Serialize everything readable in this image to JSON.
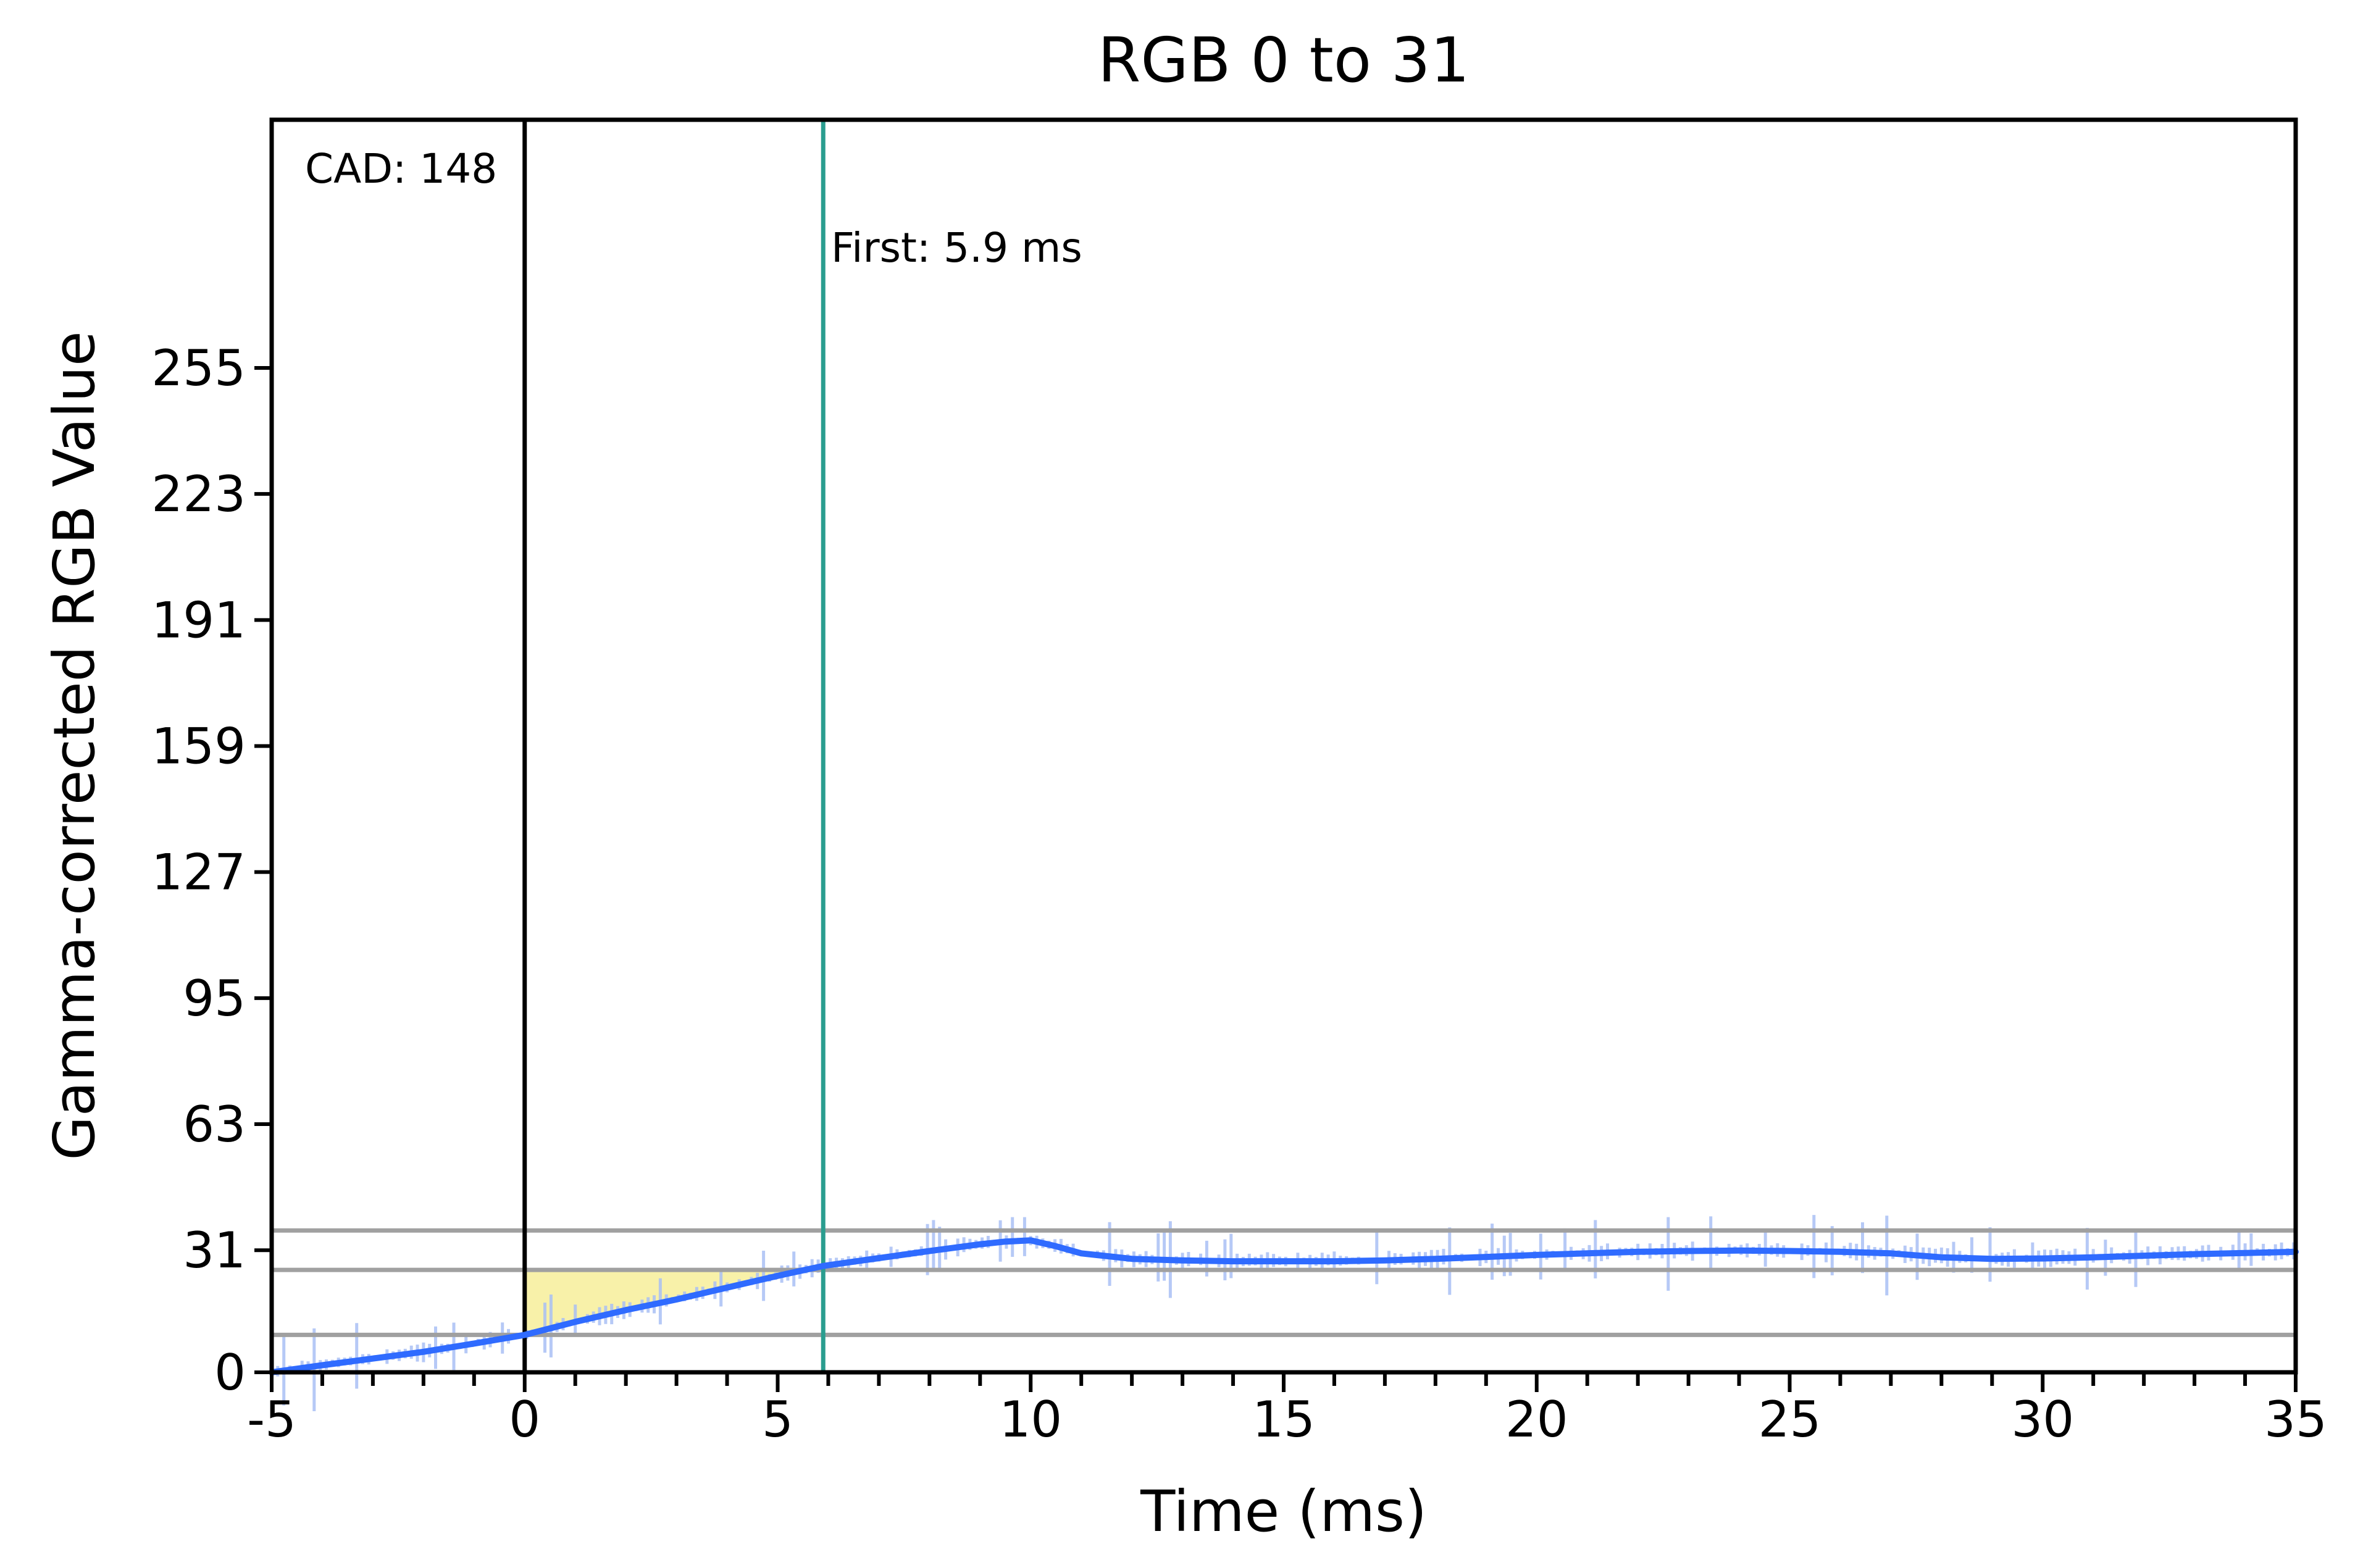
{
  "chart_data": {
    "type": "line",
    "title": "RGB 0 to 31",
    "xlabel": "Time (ms)",
    "ylabel": "Gamma-corrected RGB Value",
    "xlim": [
      -5,
      35
    ],
    "ylim": [
      0,
      318
    ],
    "x_ticks": [
      -5,
      0,
      5,
      10,
      15,
      20,
      25,
      30,
      35
    ],
    "y_ticks": [
      0,
      31,
      63,
      95,
      127,
      159,
      191,
      223,
      255
    ],
    "grid": false,
    "reference_lines": {
      "horizontal": [
        9.5,
        26,
        36
      ],
      "vertical": [
        {
          "x": 0,
          "color": "#000000",
          "label": "CAD: 148"
        },
        {
          "x": 5.9,
          "color": "#2a9d8f",
          "label": "First: 5.9 ms"
        }
      ]
    },
    "shaded_region": {
      "x_start": 0,
      "x_end": 5.9,
      "y_low": 9.5,
      "y_high": 26,
      "color": "#f7f0a0"
    },
    "series": [
      {
        "color": "#2f6bff",
        "x": [
          -5,
          -4,
          -3,
          -2,
          -1,
          0,
          1,
          2,
          3,
          4,
          5,
          5.9,
          7,
          8,
          9,
          9.5,
          10,
          10.5,
          11,
          12,
          13,
          14,
          15,
          16,
          17,
          18,
          19,
          20,
          21,
          22,
          23,
          24,
          25,
          26,
          27,
          28,
          29,
          30,
          31,
          32,
          33,
          34,
          35
        ],
        "y": [
          0,
          1.8,
          3.5,
          5.2,
          7.3,
          9.5,
          12.8,
          15.8,
          18.5,
          21.5,
          24.5,
          27,
          29,
          30.8,
          32.5,
          33.2,
          33.5,
          32,
          30.2,
          28.8,
          28.4,
          28.2,
          28.2,
          28.2,
          28.4,
          28.8,
          29.3,
          29.8,
          30.2,
          30.6,
          30.8,
          30.9,
          30.8,
          30.6,
          30.2,
          29.2,
          28.8,
          28.9,
          29.2,
          29.6,
          30,
          30.3,
          30.6
        ]
      }
    ]
  }
}
